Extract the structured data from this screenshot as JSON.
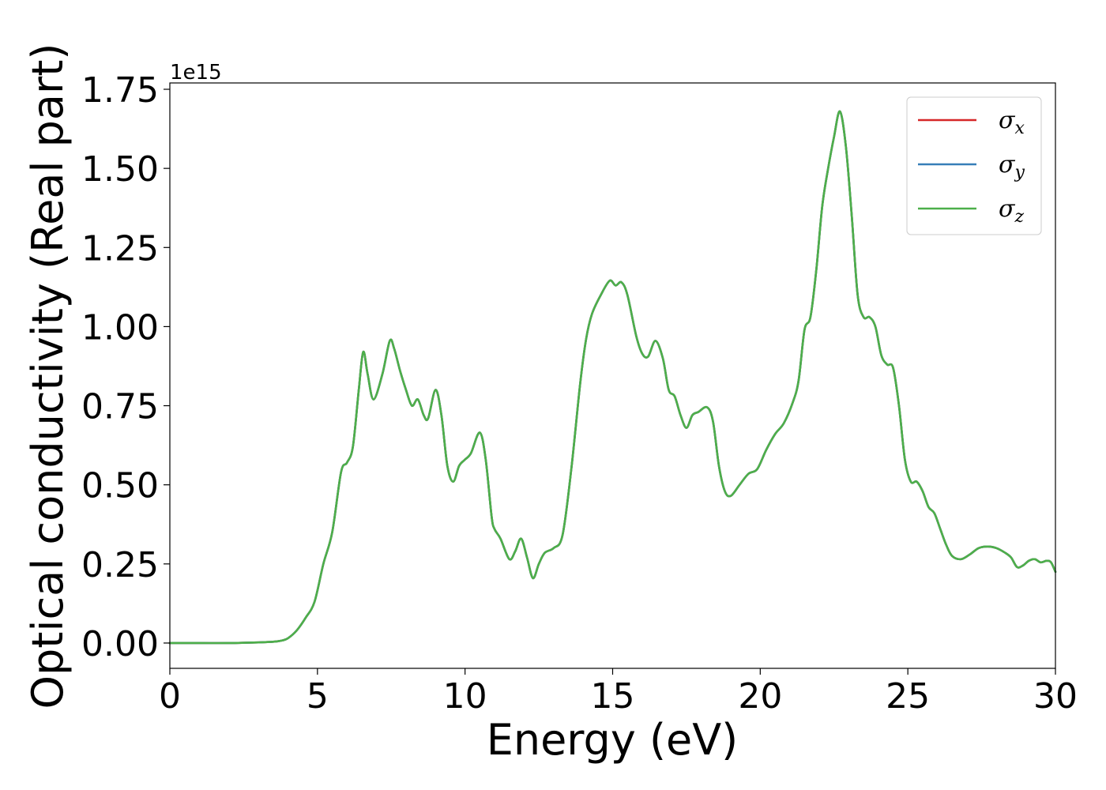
{
  "chart_data": {
    "type": "line",
    "xlabel": "Energy (eV)",
    "ylabel": "Optical conductivity (Real part)",
    "y_offset_label": "1e15",
    "y_scale": 1000000000000000.0,
    "xlim": [
      0,
      30
    ],
    "ylim": [
      -0.08,
      1.77
    ],
    "x_ticks": [
      0,
      5,
      10,
      15,
      20,
      25,
      30
    ],
    "x_tick_labels": [
      "0",
      "5",
      "10",
      "15",
      "20",
      "25",
      "30"
    ],
    "y_ticks": [
      0.0,
      0.25,
      0.5,
      0.75,
      1.0,
      1.25,
      1.5,
      1.75
    ],
    "y_tick_labels": [
      "0.00",
      "0.25",
      "0.50",
      "0.75",
      "1.00",
      "1.25",
      "1.50",
      "1.75"
    ],
    "grid": false,
    "legend_position": "top-right",
    "series": [
      {
        "name": "σx",
        "symbol": "σ",
        "subscript": "x",
        "color": "#d62728"
      },
      {
        "name": "σy",
        "symbol": "σ",
        "subscript": "y",
        "color": "#377eb8"
      },
      {
        "name": "σz",
        "symbol": "σ",
        "subscript": "z",
        "color": "#4daf4a"
      }
    ],
    "x": [
      0,
      1,
      2,
      3,
      3.5,
      3.8,
      4.0,
      4.3,
      4.6,
      4.9,
      5.2,
      5.5,
      5.8,
      6.0,
      6.2,
      6.4,
      6.55,
      6.7,
      6.9,
      7.2,
      7.45,
      7.6,
      7.8,
      8.0,
      8.2,
      8.4,
      8.6,
      8.75,
      9.0,
      9.2,
      9.4,
      9.6,
      9.8,
      10.0,
      10.2,
      10.5,
      10.7,
      10.9,
      11.0,
      11.2,
      11.5,
      11.7,
      11.9,
      12.1,
      12.3,
      12.5,
      12.7,
      13.0,
      13.3,
      13.6,
      13.9,
      14.1,
      14.3,
      14.6,
      14.9,
      15.1,
      15.3,
      15.5,
      15.8,
      16.0,
      16.2,
      16.45,
      16.7,
      16.9,
      17.1,
      17.3,
      17.5,
      17.7,
      17.9,
      18.2,
      18.4,
      18.6,
      18.8,
      19.0,
      19.3,
      19.6,
      19.9,
      20.2,
      20.5,
      20.8,
      21.1,
      21.3,
      21.5,
      21.7,
      21.9,
      22.1,
      22.3,
      22.5,
      22.7,
      22.9,
      23.1,
      23.3,
      23.5,
      23.7,
      23.9,
      24.1,
      24.3,
      24.5,
      24.7,
      24.9,
      25.1,
      25.3,
      25.5,
      25.7,
      25.9,
      26.1,
      26.3,
      26.5,
      26.8,
      27.1,
      27.4,
      27.7,
      28.0,
      28.3,
      28.5,
      28.7,
      28.9,
      29.1,
      29.3,
      29.5,
      29.7,
      29.85,
      30.0
    ],
    "y": [
      0.0,
      0.0,
      0.0,
      0.002,
      0.004,
      0.008,
      0.015,
      0.04,
      0.08,
      0.13,
      0.25,
      0.35,
      0.54,
      0.57,
      0.62,
      0.8,
      0.92,
      0.85,
      0.77,
      0.85,
      0.955,
      0.93,
      0.86,
      0.8,
      0.75,
      0.77,
      0.72,
      0.71,
      0.8,
      0.72,
      0.56,
      0.51,
      0.56,
      0.58,
      0.6,
      0.665,
      0.58,
      0.4,
      0.36,
      0.33,
      0.265,
      0.29,
      0.33,
      0.27,
      0.205,
      0.25,
      0.285,
      0.3,
      0.34,
      0.55,
      0.82,
      0.96,
      1.04,
      1.1,
      1.145,
      1.13,
      1.14,
      1.1,
      0.97,
      0.915,
      0.905,
      0.955,
      0.9,
      0.8,
      0.78,
      0.72,
      0.68,
      0.72,
      0.73,
      0.745,
      0.7,
      0.56,
      0.48,
      0.465,
      0.5,
      0.535,
      0.55,
      0.61,
      0.66,
      0.695,
      0.76,
      0.83,
      0.99,
      1.03,
      1.18,
      1.38,
      1.5,
      1.6,
      1.68,
      1.57,
      1.35,
      1.1,
      1.03,
      1.03,
      1.0,
      0.91,
      0.88,
      0.87,
      0.75,
      0.58,
      0.51,
      0.51,
      0.48,
      0.43,
      0.41,
      0.36,
      0.31,
      0.275,
      0.265,
      0.28,
      0.3,
      0.305,
      0.3,
      0.285,
      0.27,
      0.24,
      0.245,
      0.26,
      0.265,
      0.255,
      0.26,
      0.255,
      0.225
    ]
  }
}
